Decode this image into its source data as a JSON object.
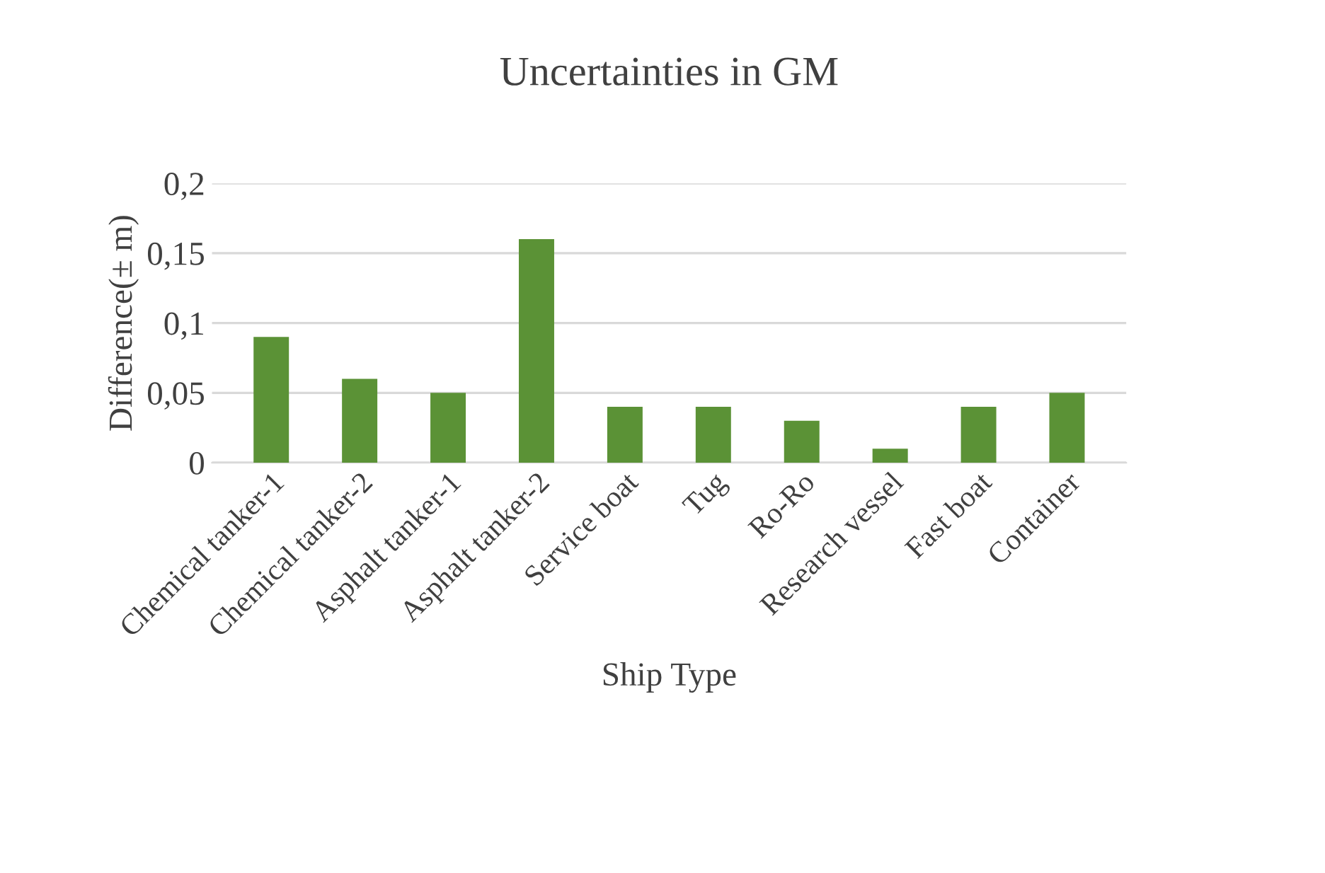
{
  "chart_data": {
    "type": "bar",
    "title": "Uncertainties in GM",
    "xlabel": "Ship Type",
    "ylabel": "Difference(± m)",
    "categories": [
      "Chemical tanker-1",
      "Chemical tanker-2",
      "Asphalt tanker-1",
      "Asphalt tanker-2",
      "Service boat",
      "Tug",
      "Ro-Ro",
      "Research vessel",
      "Fast boat",
      "Container"
    ],
    "values": [
      0.09,
      0.06,
      0.05,
      0.16,
      0.04,
      0.04,
      0.03,
      0.01,
      0.04,
      0.05
    ],
    "color": "#5b9236",
    "ylim": [
      0,
      0.2
    ],
    "yticks": [
      0,
      {
        "value": 0.05,
        "label": "0,05"
      },
      {
        "value": 0.1,
        "label": "0,1"
      },
      {
        "value": 0.15,
        "label": "0,15"
      },
      {
        "value": 0.2,
        "label": "0,2"
      }
    ],
    "grid": "y",
    "legend": false
  }
}
